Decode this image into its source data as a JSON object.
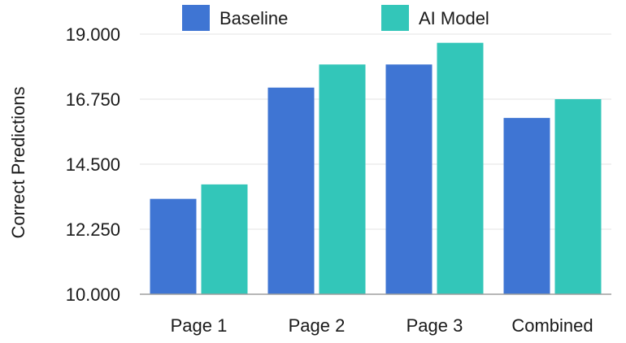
{
  "chart_data": {
    "type": "bar",
    "title": "",
    "xlabel": "",
    "ylabel": "Correct Predictions",
    "categories": [
      "Page 1",
      "Page 2",
      "Page 3",
      "Combined"
    ],
    "series": [
      {
        "name": "Baseline",
        "color": "#3f75d3",
        "values": [
          13.3,
          17.15,
          17.95,
          16.1
        ]
      },
      {
        "name": "AI Model",
        "color": "#33c6b9",
        "values": [
          13.8,
          17.95,
          18.7,
          16.75
        ]
      }
    ],
    "ylim": [
      10.0,
      19.0
    ],
    "yticks": [
      10.0,
      12.25,
      14.5,
      16.75,
      19.0
    ],
    "ytick_labels": [
      "10.000",
      "12.250",
      "14.500",
      "16.750",
      "19.000"
    ],
    "grid": true,
    "legend_position": "top"
  }
}
